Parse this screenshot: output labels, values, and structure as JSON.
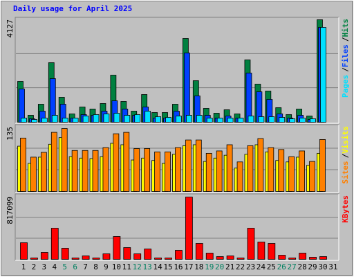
{
  "chart_data": [
    {
      "type": "bar",
      "title": "Daily usage for April 2025",
      "ylim": [
        0,
        4127
      ],
      "yticks": [
        4127
      ],
      "legend_separator": "/",
      "series": [
        {
          "name": "Hits",
          "color": "#008040",
          "values": [
            1645,
            279,
            725,
            2398,
            1004,
            335,
            613,
            530,
            753,
            1896,
            837,
            446,
            1115,
            390,
            390,
            725,
            3374,
            1673,
            558,
            362,
            502,
            335,
            2510,
            1534,
            1255,
            586,
            307,
            530,
            251,
            4127,
            0
          ]
        },
        {
          "name": "Files",
          "color": "#0040FF",
          "values": [
            1338,
            139,
            446,
            1757,
            725,
            167,
            307,
            279,
            446,
            864,
            530,
            279,
            613,
            167,
            167,
            446,
            2788,
            1060,
            279,
            167,
            251,
            167,
            1980,
            1227,
            920,
            335,
            167,
            279,
            111,
            3820,
            0
          ]
        },
        {
          "name": "Pages",
          "color": "#00E0FF",
          "values": [
            167,
            111,
            167,
            279,
            167,
            167,
            251,
            307,
            335,
            362,
            279,
            307,
            446,
            223,
            195,
            251,
            279,
            279,
            167,
            167,
            167,
            167,
            251,
            223,
            223,
            195,
            139,
            167,
            139,
            3820,
            0
          ]
        }
      ]
    },
    {
      "type": "bar",
      "ylim": [
        0,
        135
      ],
      "yticks": [
        135
      ],
      "legend_separator": "/",
      "series": [
        {
          "name": "Visits",
          "color": "#FFFF00",
          "values": [
            95,
            59,
            72,
            99,
            113,
            73,
            70,
            69,
            73,
            101,
            98,
            66,
            70,
            65,
            59,
            78,
            96,
            98,
            63,
            70,
            76,
            49,
            78,
            98,
            83,
            65,
            62,
            72,
            55,
            80,
            0
          ]
        },
        {
          "name": "Sites",
          "color": "#FF8000",
          "values": [
            112,
            72,
            82,
            124,
            132,
            86,
            86,
            86,
            92,
            121,
            124,
            90,
            90,
            83,
            83,
            92,
            108,
            108,
            80,
            85,
            98,
            62,
            96,
            111,
            92,
            88,
            73,
            85,
            63,
            109,
            0
          ]
        }
      ]
    },
    {
      "type": "bar",
      "ylim": [
        0,
        817099
      ],
      "yticks": [
        817099
      ],
      "categories": [
        "1",
        "2",
        "3",
        "4",
        "5",
        "6",
        "7",
        "8",
        "9",
        "10",
        "11",
        "12",
        "13",
        "14",
        "15",
        "16",
        "17",
        "18",
        "19",
        "20",
        "21",
        "22",
        "23",
        "24",
        "25",
        "26",
        "27",
        "28",
        "29",
        "30",
        "31"
      ],
      "category_colors": [
        "#000000",
        "#000000",
        "#000000",
        "#000000",
        "#008060",
        "#008060",
        "#000000",
        "#000000",
        "#000000",
        "#000000",
        "#000000",
        "#008060",
        "#008060",
        "#000000",
        "#000000",
        "#000000",
        "#000000",
        "#000000",
        "#008060",
        "#008060",
        "#000000",
        "#000000",
        "#000000",
        "#000000",
        "#000000",
        "#008060",
        "#008060",
        "#000000",
        "#000000",
        "#000000",
        "#000000"
      ],
      "series": [
        {
          "name": "KBytes",
          "color": "#FF0000",
          "values": [
            217893,
            18158,
            90789,
            408550,
            145262,
            18158,
            45394,
            18158,
            72631,
            299603,
            154341,
            72631,
            136183,
            18158,
            18158,
            118025,
            817099,
            208813,
            81709,
            36315,
            45394,
            18158,
            408550,
            226972,
            208813,
            54473,
            18158,
            81709,
            27236,
            36315,
            0
          ]
        }
      ]
    }
  ]
}
